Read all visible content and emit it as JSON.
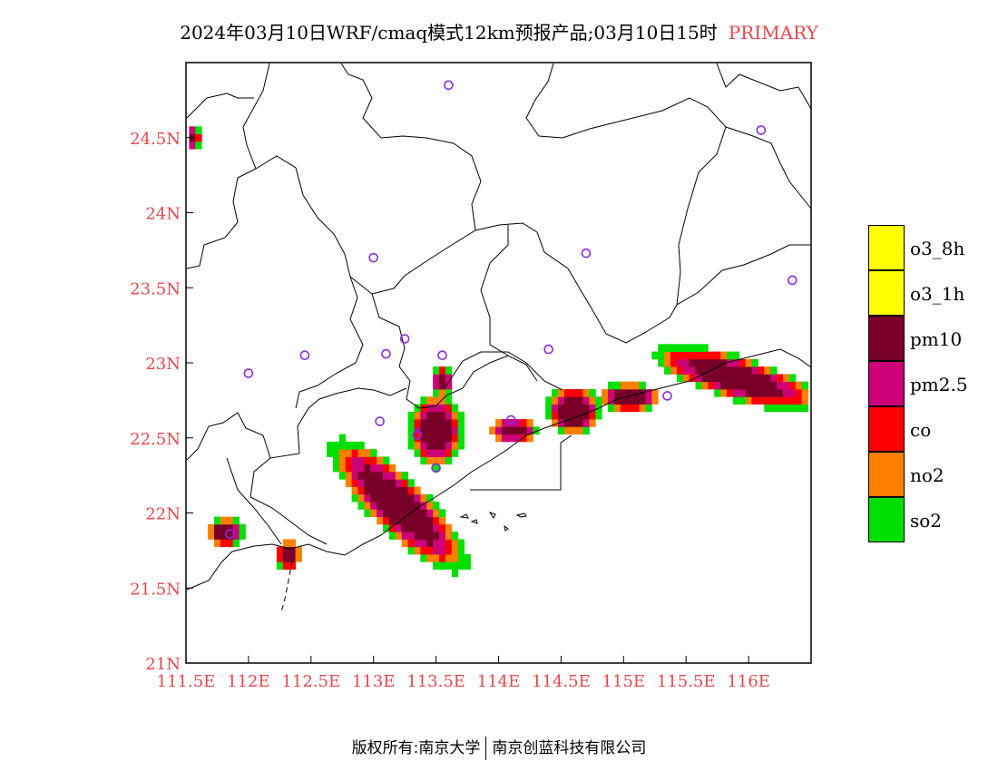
{
  "header": {
    "title": "2024年03月10日WRF/cmaq模式12km预报产品;03月10日15时",
    "tag": "PRIMARY",
    "tag_color": "#e8474c"
  },
  "map": {
    "lon_range": [
      111.5,
      116.5
    ],
    "lat_range": [
      21,
      25
    ],
    "x_ticks": [
      {
        "value": 111.5,
        "label": "111.5E"
      },
      {
        "value": 112,
        "label": "112E"
      },
      {
        "value": 112.5,
        "label": "112.5E"
      },
      {
        "value": 113,
        "label": "113E"
      },
      {
        "value": 113.5,
        "label": "113.5E"
      },
      {
        "value": 114,
        "label": "114E"
      },
      {
        "value": 114.5,
        "label": "114.5E"
      },
      {
        "value": 115,
        "label": "115E"
      },
      {
        "value": 115.5,
        "label": "115.5E"
      },
      {
        "value": 116,
        "label": "116E"
      }
    ],
    "y_ticks": [
      {
        "value": 21,
        "label": "21N"
      },
      {
        "value": 21.5,
        "label": "21.5N"
      },
      {
        "value": 22,
        "label": "22N"
      },
      {
        "value": 22.5,
        "label": "22.5N"
      },
      {
        "value": 23,
        "label": "23N"
      },
      {
        "value": 23.5,
        "label": "23.5N"
      },
      {
        "value": 24,
        "label": "24N"
      },
      {
        "value": 24.5,
        "label": "24.5N"
      }
    ],
    "tick_label_color": "#e8474c",
    "stations": [
      [
        113.6,
        24.85
      ],
      [
        116.1,
        24.55
      ],
      [
        113.0,
        23.7
      ],
      [
        114.7,
        23.73
      ],
      [
        116.35,
        23.55
      ],
      [
        112.0,
        22.93
      ],
      [
        112.45,
        23.05
      ],
      [
        113.1,
        23.06
      ],
      [
        113.25,
        23.16
      ],
      [
        113.55,
        23.05
      ],
      [
        114.4,
        23.09
      ],
      [
        113.05,
        22.61
      ],
      [
        113.35,
        22.52
      ],
      [
        114.1,
        22.62
      ],
      [
        113.5,
        22.3
      ],
      [
        115.35,
        22.78
      ],
      [
        111.85,
        21.86
      ]
    ]
  },
  "pollution_blobs": [
    {
      "region": "west-edge",
      "lon": 111.53,
      "lat": 24.5,
      "rx": 0.08,
      "ry": 0.07
    },
    {
      "region": "pearl-river-delta",
      "lon": 113.2,
      "lat": 22.05,
      "rx": 0.55,
      "ry": 0.16,
      "angle": -38
    },
    {
      "region": "pearl-river-upper",
      "lon": 113.5,
      "lat": 22.55,
      "rx": 0.18,
      "ry": 0.2
    },
    {
      "region": "pearl-river-north",
      "lon": 113.55,
      "lat": 22.88,
      "rx": 0.07,
      "ry": 0.08
    },
    {
      "region": "shenzhen",
      "lon": 114.12,
      "lat": 22.55,
      "rx": 0.16,
      "ry": 0.07
    },
    {
      "region": "huizhou-coast",
      "lon": 114.6,
      "lat": 22.68,
      "rx": 0.18,
      "ry": 0.13
    },
    {
      "region": "shanwei",
      "lon": 115.05,
      "lat": 22.77,
      "rx": 0.2,
      "ry": 0.08
    },
    {
      "region": "shantou",
      "lon": 115.9,
      "lat": 22.9,
      "rx": 0.55,
      "ry": 0.12,
      "angle": -14
    },
    {
      "region": "zhanjiang",
      "lon": 111.82,
      "lat": 21.87,
      "rx": 0.12,
      "ry": 0.08
    },
    {
      "region": "maoming",
      "lon": 112.32,
      "lat": 21.72,
      "rx": 0.08,
      "ry": 0.08
    }
  ],
  "legend": {
    "items": [
      {
        "label": "o3_8h",
        "color": "#ffff00"
      },
      {
        "label": "o3_1h",
        "color": "#ffff00"
      },
      {
        "label": "pm10",
        "color": "#780028"
      },
      {
        "label": "pm2.5",
        "color": "#cd0078"
      },
      {
        "label": "co",
        "color": "#ff0000"
      },
      {
        "label": "no2",
        "color": "#ff7f00"
      },
      {
        "label": "so2",
        "color": "#00e000"
      }
    ]
  },
  "footer": {
    "left": "版权所有:南京大学",
    "right": "南京创蓝科技有限公司"
  }
}
